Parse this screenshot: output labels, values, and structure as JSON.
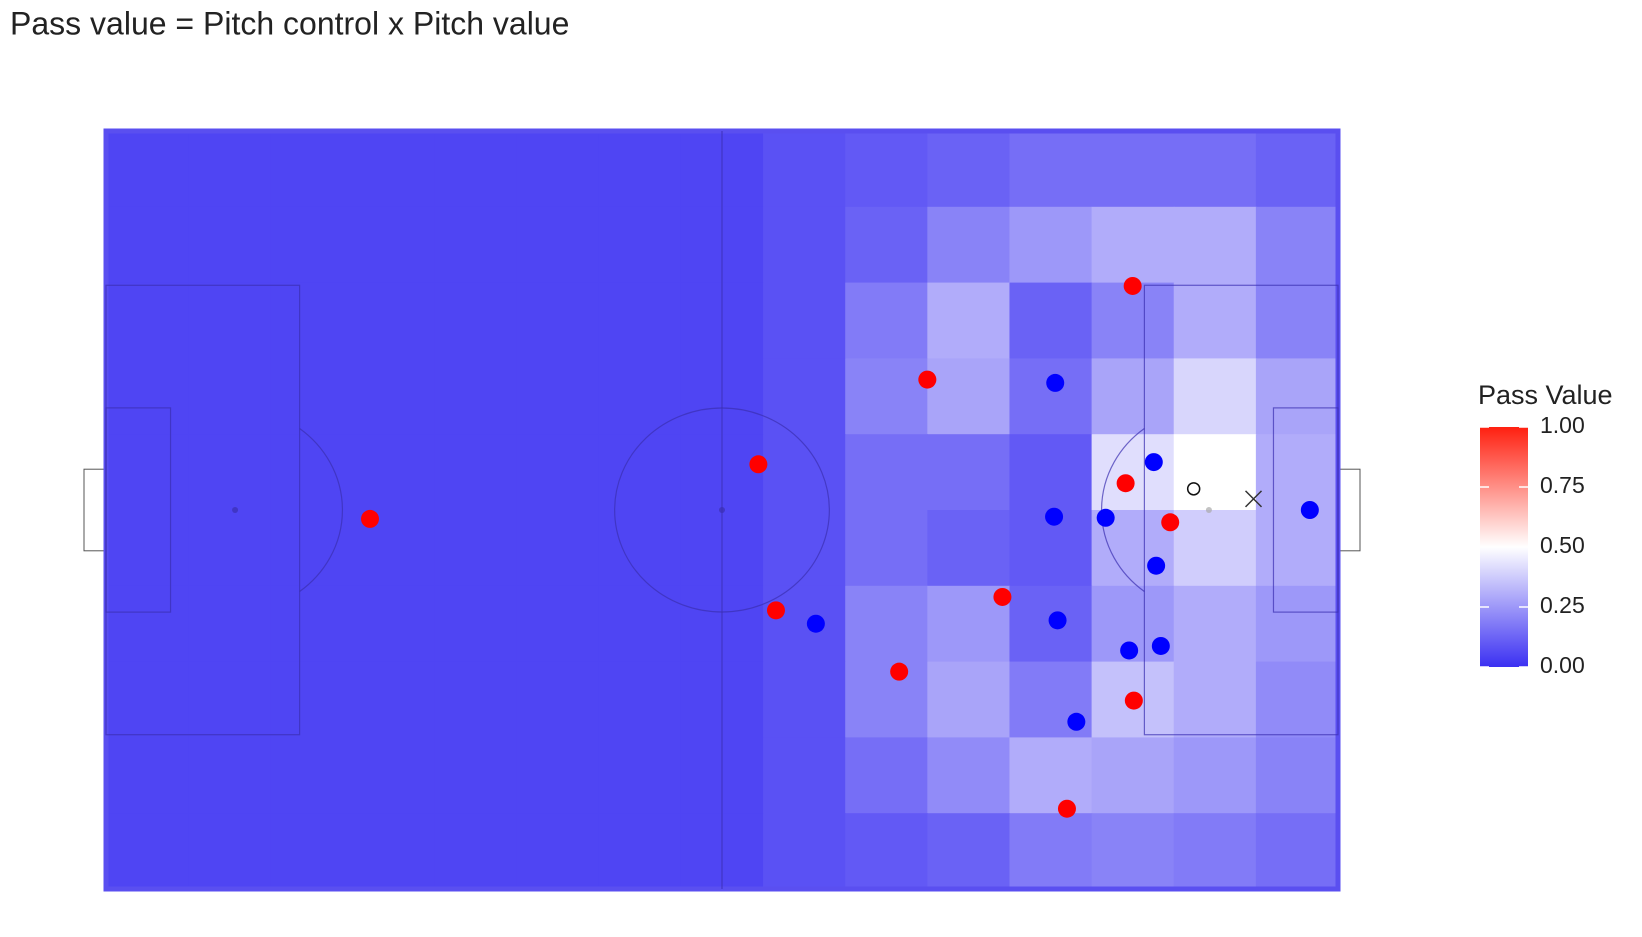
{
  "chart_data": {
    "type": "pitch-heatmap",
    "title": "Pass value = Pitch control x Pitch value",
    "xlim": [
      0,
      105
    ],
    "ylim": [
      0,
      68
    ],
    "z": [
      [
        0.05,
        0.05,
        0.05,
        0.05,
        0.05,
        0.05,
        0.05,
        0.05,
        0.08,
        0.1,
        0.12,
        0.15,
        0.15,
        0.15,
        0.12
      ],
      [
        0.05,
        0.05,
        0.05,
        0.05,
        0.05,
        0.05,
        0.05,
        0.05,
        0.08,
        0.12,
        0.2,
        0.25,
        0.3,
        0.3,
        0.2
      ],
      [
        0.05,
        0.05,
        0.05,
        0.05,
        0.05,
        0.05,
        0.05,
        0.05,
        0.08,
        0.18,
        0.3,
        0.12,
        0.2,
        0.3,
        0.2
      ],
      [
        0.05,
        0.05,
        0.05,
        0.05,
        0.05,
        0.05,
        0.05,
        0.05,
        0.08,
        0.2,
        0.28,
        0.15,
        0.28,
        0.4,
        0.28
      ],
      [
        0.05,
        0.05,
        0.05,
        0.05,
        0.05,
        0.05,
        0.05,
        0.05,
        0.08,
        0.15,
        0.15,
        0.1,
        0.42,
        0.5,
        0.3
      ],
      [
        0.05,
        0.05,
        0.05,
        0.05,
        0.05,
        0.05,
        0.05,
        0.05,
        0.08,
        0.15,
        0.12,
        0.1,
        0.3,
        0.38,
        0.3
      ],
      [
        0.05,
        0.05,
        0.05,
        0.05,
        0.05,
        0.05,
        0.05,
        0.05,
        0.08,
        0.2,
        0.25,
        0.12,
        0.25,
        0.3,
        0.25
      ],
      [
        0.05,
        0.05,
        0.05,
        0.05,
        0.05,
        0.05,
        0.05,
        0.05,
        0.08,
        0.2,
        0.28,
        0.18,
        0.35,
        0.3,
        0.22
      ],
      [
        0.05,
        0.05,
        0.05,
        0.05,
        0.05,
        0.05,
        0.05,
        0.05,
        0.08,
        0.15,
        0.22,
        0.3,
        0.28,
        0.25,
        0.2
      ],
      [
        0.05,
        0.05,
        0.05,
        0.05,
        0.05,
        0.05,
        0.05,
        0.05,
        0.08,
        0.1,
        0.12,
        0.18,
        0.2,
        0.18,
        0.15
      ]
    ],
    "series": [
      {
        "color": "#ff0000",
        "x": [
          22.5,
          55.6,
          57.1,
          67.6,
          70.0,
          76.4,
          87.5,
          86.9,
          90.7,
          87.6,
          81.9
        ],
        "y": [
          34.8,
          29.9,
          43.0,
          48.5,
          22.3,
          41.8,
          13.9,
          31.6,
          35.1,
          51.1,
          60.8
        ]
      },
      {
        "color": "#0000ff",
        "x": [
          60.5,
          80.9,
          89.3,
          80.8,
          85.2,
          89.5,
          81.1,
          87.2,
          89.9,
          82.7,
          102.6
        ],
        "y": [
          44.2,
          22.6,
          29.7,
          34.6,
          34.7,
          39.0,
          43.9,
          46.6,
          46.2,
          53.0,
          34.0
        ]
      }
    ],
    "ball": {
      "x": 92.7,
      "y": 32.1
    },
    "target": {
      "x": 97.8,
      "y": 33.0
    },
    "legend_title": "Pass Value",
    "clim": [
      0,
      1
    ],
    "cticks": [
      {
        "value": 0,
        "label": "0.00"
      },
      {
        "value": 0.25,
        "label": "0.25"
      },
      {
        "value": 0.5,
        "label": "0.50"
      },
      {
        "value": 0.75,
        "label": "0.75"
      },
      {
        "value": 1,
        "label": "1.00"
      }
    ]
  }
}
